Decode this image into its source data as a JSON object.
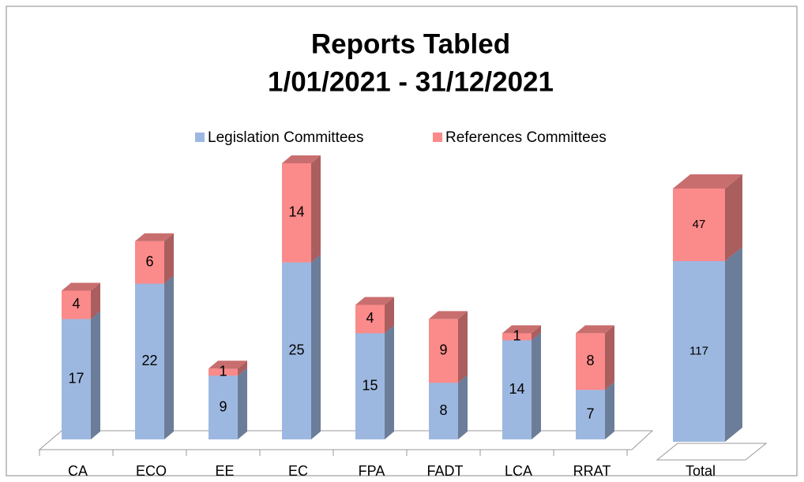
{
  "chart_data": [
    {
      "type": "bar",
      "stacked": true,
      "title": "Reports Tabled",
      "subtitle": "1/01/2021 - 31/12/2021",
      "categories": [
        "CA",
        "ECO",
        "EE",
        "EC",
        "FPA",
        "FADT",
        "LCA",
        "RRAT"
      ],
      "series": [
        {
          "name": "Legislation Committees",
          "color": "#9db8e0",
          "values": [
            17,
            22,
            9,
            25,
            15,
            8,
            14,
            7
          ]
        },
        {
          "name": "References Committees",
          "color": "#fb8a8a",
          "values": [
            4,
            6,
            1,
            14,
            4,
            9,
            1,
            8
          ]
        }
      ]
    },
    {
      "type": "bar",
      "stacked": true,
      "categories": [
        "Total"
      ],
      "series": [
        {
          "color": "#9db8e0",
          "values": [
            117
          ]
        },
        {
          "color": "#fb8a8a",
          "values": [
            47
          ]
        }
      ]
    }
  ]
}
